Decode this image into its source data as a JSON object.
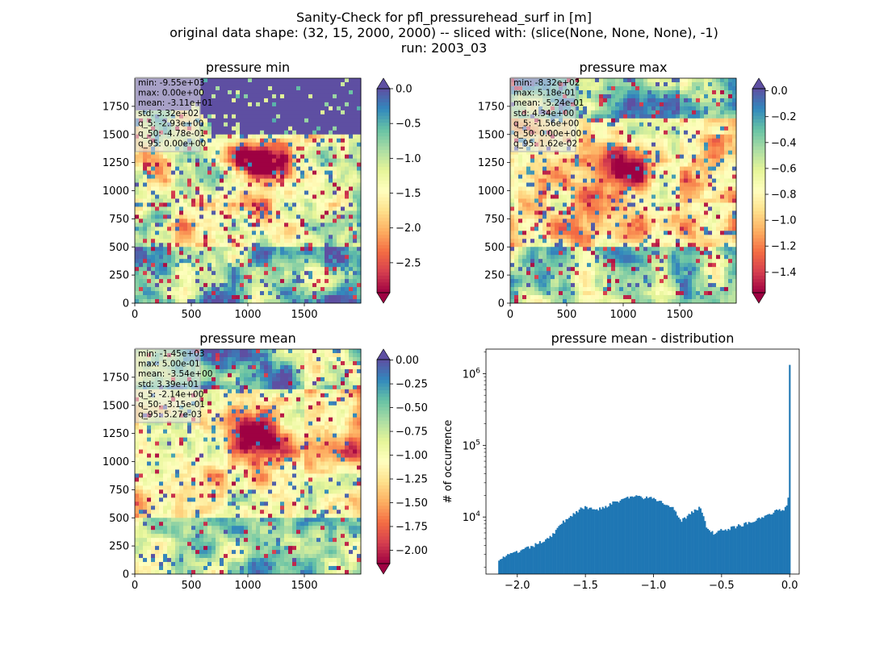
{
  "suptitle": {
    "line1": "Sanity-Check for pfl_pressurehead_surf in [m]",
    "line2": "original data shape: (32, 15, 2000, 2000) -- sliced with: (slice(None, None, None), -1)",
    "line3": "run: 2003_03"
  },
  "chart_data": [
    {
      "type": "heatmap",
      "title": "pressure min",
      "x_ticks": [
        "0",
        "500",
        "1000",
        "1500"
      ],
      "y_ticks": [
        "0",
        "250",
        "500",
        "750",
        "1000",
        "1250",
        "1500",
        "1750"
      ],
      "xlim": [
        0,
        2000
      ],
      "ylim": [
        0,
        2000
      ],
      "colormap": "Spectral",
      "colorbar": {
        "ticks": [
          0.0,
          -0.5,
          -1.0,
          -1.5,
          -2.0,
          -2.5
        ],
        "tick_labels": [
          "0.0",
          "−0.5",
          "−1.0",
          "−1.5",
          "−2.0",
          "−2.5"
        ],
        "range": [
          -2.93,
          0.0
        ],
        "extend": "both"
      },
      "stats": [
        "min: -9.55e+03",
        "max: 0.00e+00",
        "mean: -3.11e+01",
        "std: 3.32e+02",
        "q_5: -2.93e+00",
        "q_50: -4.78e-01",
        "q_95: 0.00e+00"
      ]
    },
    {
      "type": "heatmap",
      "title": "pressure max",
      "x_ticks": [
        "0",
        "500",
        "1000",
        "1500"
      ],
      "y_ticks": [
        "0",
        "250",
        "500",
        "750",
        "1000",
        "1250",
        "1500",
        "1750"
      ],
      "xlim": [
        0,
        2000
      ],
      "ylim": [
        0,
        2000
      ],
      "colormap": "Spectral",
      "colorbar": {
        "ticks": [
          0.0,
          -0.2,
          -0.4,
          -0.6,
          -0.8,
          -1.0,
          -1.2,
          -1.4
        ],
        "tick_labels": [
          "0.0",
          "−0.2",
          "−0.4",
          "−0.6",
          "−0.8",
          "−1.0",
          "−1.2",
          "−1.4"
        ],
        "range": [
          -1.56,
          0.0162
        ],
        "extend": "both"
      },
      "stats": [
        "min: -8.32e+02",
        "max: 5.18e-01",
        "mean: -5.24e-01",
        "std: 4.34e+00",
        "q_5: -1.56e+00",
        "q_50: 0.00e+00",
        "q_95: 1.62e-02"
      ]
    },
    {
      "type": "heatmap",
      "title": "pressure mean",
      "x_ticks": [
        "0",
        "500",
        "1000",
        "1500"
      ],
      "y_ticks": [
        "0",
        "250",
        "500",
        "750",
        "1000",
        "1250",
        "1500",
        "1750"
      ],
      "xlim": [
        0,
        2000
      ],
      "ylim": [
        0,
        2000
      ],
      "colormap": "Spectral",
      "colorbar": {
        "ticks": [
          0.0,
          -0.25,
          -0.5,
          -0.75,
          -1.0,
          -1.25,
          -1.5,
          -1.75,
          -2.0
        ],
        "tick_labels": [
          "0.00",
          "−0.25",
          "−0.50",
          "−0.75",
          "−1.00",
          "−1.25",
          "−1.50",
          "−1.75",
          "−2.00"
        ],
        "range": [
          -2.14,
          0.00527
        ],
        "extend": "both"
      },
      "stats": [
        "min: -1.45e+03",
        "max: 5.00e-01",
        "mean: -3.54e+00",
        "std: 3.39e+01",
        "q_5: -2.14e+00",
        "q_50: -3.15e-01",
        "q_95: 5.27e-03"
      ]
    },
    {
      "type": "bar",
      "title": "pressure mean - distribution",
      "ylabel": "# of occurrence",
      "yscale": "log",
      "color": "#1f77b4",
      "x_ticks": [
        -2.0,
        -1.5,
        -1.0,
        -0.5,
        0.0
      ],
      "x_tick_labels": [
        "−2.0",
        "−1.5",
        "−1.0",
        "−0.5",
        "0.0"
      ],
      "xlim": [
        -2.23,
        0.07
      ],
      "ylim": [
        1600,
        2200000
      ],
      "y_ticks": [
        10000,
        100000,
        1000000
      ],
      "bin_range": [
        -2.14,
        0.00527
      ],
      "bins": 200,
      "profile": [
        [
          -2.14,
          2600
        ],
        [
          -2.05,
          3000
        ],
        [
          -1.95,
          3500
        ],
        [
          -1.85,
          4200
        ],
        [
          -1.75,
          5500
        ],
        [
          -1.65,
          9000
        ],
        [
          -1.55,
          12500
        ],
        [
          -1.5,
          13500
        ],
        [
          -1.4,
          13000
        ],
        [
          -1.3,
          15500
        ],
        [
          -1.2,
          18500
        ],
        [
          -1.15,
          19500
        ],
        [
          -1.05,
          18500
        ],
        [
          -0.98,
          17500
        ],
        [
          -0.9,
          14500
        ],
        [
          -0.85,
          13500
        ],
        [
          -0.8,
          9000
        ],
        [
          -0.75,
          10000
        ],
        [
          -0.7,
          12500
        ],
        [
          -0.66,
          13500
        ],
        [
          -0.63,
          9500
        ],
        [
          -0.6,
          6500
        ],
        [
          -0.55,
          5800
        ],
        [
          -0.5,
          6500
        ],
        [
          -0.4,
          7300
        ],
        [
          -0.3,
          8300
        ],
        [
          -0.2,
          10200
        ],
        [
          -0.1,
          12000
        ],
        [
          -0.04,
          13000
        ],
        [
          -0.015,
          16000
        ],
        [
          -0.008,
          22000
        ],
        [
          0.0,
          1400000
        ]
      ]
    }
  ]
}
